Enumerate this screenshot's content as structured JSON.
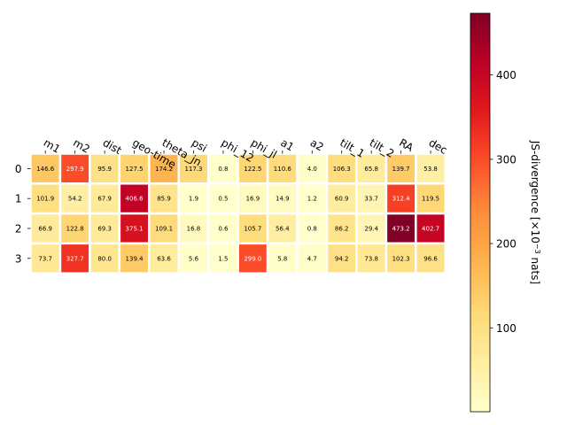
{
  "chart_data": {
    "type": "heatmap",
    "title": "",
    "x_labels": [
      "m1",
      "m2",
      "dist",
      "geo-time",
      "theta_jn",
      "psi",
      "phi_12",
      "phi_jl",
      "a1",
      "a2",
      "tilt_1",
      "tilt_2",
      "RA",
      "dec"
    ],
    "y_labels": [
      "0",
      "1",
      "2",
      "3"
    ],
    "values": [
      [
        146.6,
        297.9,
        95.9,
        127.5,
        174.2,
        117.3,
        0.8,
        122.5,
        110.6,
        4.0,
        106.3,
        65.8,
        139.7,
        53.8
      ],
      [
        101.9,
        54.2,
        67.9,
        406.6,
        85.9,
        1.9,
        0.5,
        16.9,
        14.9,
        1.2,
        60.9,
        33.7,
        312.4,
        119.5
      ],
      [
        66.9,
        122.8,
        69.3,
        375.1,
        109.1,
        16.8,
        0.6,
        105.7,
        56.4,
        0.8,
        86.2,
        29.4,
        473.2,
        402.7
      ],
      [
        73.7,
        327.7,
        80.0,
        139.4,
        63.6,
        5.6,
        1.5,
        299.0,
        5.8,
        4.7,
        94.2,
        73.8,
        102.3,
        96.6
      ]
    ],
    "value_labels": [
      [
        "146.6",
        "297.9",
        "95.9",
        "127.5",
        "174.2",
        "117.3",
        "0.8",
        "122.5",
        "110.6",
        "4.0",
        "106.3",
        "65.8",
        "139.7",
        "53.8"
      ],
      [
        "101.9",
        "54.2",
        "67.9",
        "406.6",
        "85.9",
        "1.9",
        "0.5",
        "16.9",
        "14.9",
        "1.2",
        "60.9",
        "33.7",
        "312.4",
        "119.5"
      ],
      [
        "66.9",
        "122.8",
        "69.3",
        "375.1",
        "109.1",
        "16.8",
        "0.6",
        "105.7",
        "56.4",
        "0.8",
        "86.2",
        "29.4",
        "473.2",
        "402.7"
      ],
      [
        "73.7",
        "327.7",
        "80.0",
        "139.4",
        "63.6",
        "5.6",
        "1.5",
        "299.0",
        "5.8",
        "4.7",
        "94.2",
        "73.8",
        "102.3",
        "96.6"
      ]
    ],
    "colormap": "YlOrRd",
    "color_range": [
      0.5,
      473.2
    ],
    "colorbar": {
      "label_main": "JS-divergence [×10",
      "label_exp": "−3",
      "label_tail": " nats]",
      "ticks": [
        100,
        200,
        300,
        400
      ],
      "tick_labels": [
        "100",
        "200",
        "300",
        "400"
      ]
    },
    "x_tick_position": "top",
    "x_label_rotation": "-30",
    "grid": false
  }
}
